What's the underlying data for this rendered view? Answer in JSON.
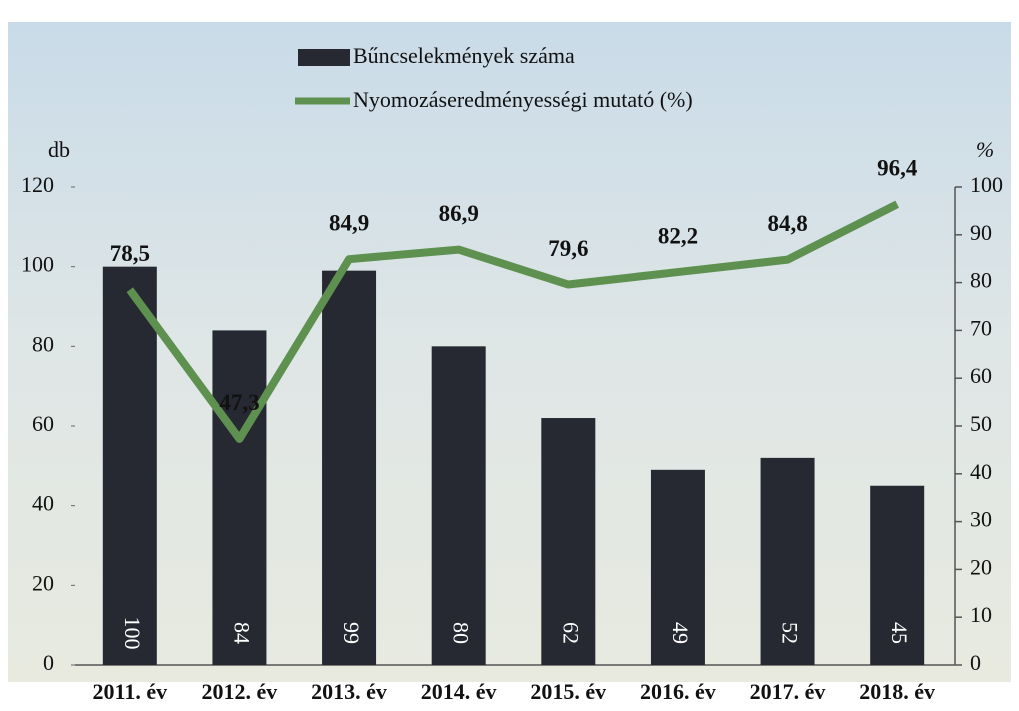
{
  "chart_data": {
    "type": "bar",
    "categories": [
      "2011. év",
      "2012. év",
      "2013. év",
      "2014. év",
      "2015. év",
      "2016. év",
      "2017. év",
      "2018. év"
    ],
    "series": [
      {
        "name": "Bűncselekmények száma",
        "color": "#262932",
        "type": "bar",
        "values": [
          100,
          84,
          99,
          80,
          62,
          49,
          52,
          45
        ]
      },
      {
        "name": "Nyomozáseredményességi mutató (%)",
        "color": "#5e9150",
        "type": "line",
        "axis": "y2",
        "values": [
          78.5,
          47.3,
          84.9,
          86.9,
          79.6,
          82.2,
          84.8,
          96.4
        ],
        "value_labels": [
          "78,5",
          "47,3",
          "84,9",
          "86,9",
          "79,6",
          "82,2",
          "84,8",
          "96,4"
        ]
      }
    ],
    "ylabel": "db",
    "y2label": "%",
    "ylim": [
      0,
      120
    ],
    "yticks": [
      0,
      20,
      40,
      60,
      80,
      100,
      120
    ],
    "y2lim": [
      0,
      100
    ],
    "y2ticks": [
      0,
      10,
      20,
      30,
      40,
      50,
      60,
      70,
      80,
      90,
      100
    ]
  }
}
